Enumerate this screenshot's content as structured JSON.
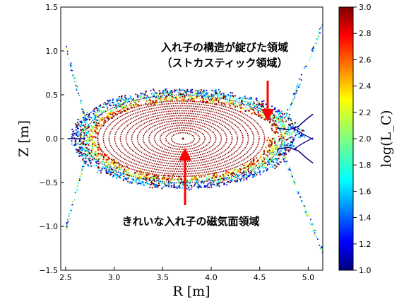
{
  "chart_data": {
    "type": "scatter",
    "title": "",
    "xlabel": "R [m]",
    "ylabel": "Z [m]",
    "xlim": [
      2.45,
      5.15
    ],
    "ylim": [
      -1.5,
      1.5
    ],
    "xticks": [
      "2.5",
      "3.0",
      "3.5",
      "4.0",
      "4.5",
      "5.0"
    ],
    "yticks": [
      "1.5",
      "1.0",
      "0.5",
      "0.0",
      "−0.5",
      "−1.0",
      "−1.5"
    ],
    "colorbar": {
      "label": "log(L_C)",
      "range": [
        1.0,
        3.0
      ],
      "ticks": [
        "3.0",
        "2.8",
        "2.6",
        "2.4",
        "2.2",
        "2.0",
        "1.8",
        "1.6",
        "1.4",
        "1.2",
        "1.0"
      ],
      "colormap": "jet"
    },
    "series": [
      {
        "region": "closed flux surfaces",
        "x": [
          3.71,
          3.66,
          3.62,
          3.56,
          3.5,
          3.43,
          3.37,
          3.3,
          3.24,
          3.17,
          3.11,
          3.04,
          2.98,
          2.92
        ],
        "y": [
          0.0,
          0.04,
          0.07,
          0.1,
          0.14,
          0.18,
          0.22,
          0.26,
          0.29,
          0.33,
          0.36,
          0.4,
          0.43,
          0.47
        ],
        "value": [
          3.0,
          3.0,
          3.0,
          3.0,
          3.0,
          3.0,
          3.0,
          3.0,
          3.0,
          3.0,
          3.0,
          3.0,
          3.0,
          3.0
        ]
      },
      {
        "region": "stochastic edge",
        "x": [
          2.7,
          2.75,
          2.85,
          3.0,
          3.2,
          4.3,
          4.45,
          4.55,
          4.65,
          4.75
        ],
        "y": [
          0.0,
          0.1,
          -0.15,
          0.25,
          -0.33,
          0.32,
          -0.25,
          0.15,
          -0.08,
          0.05
        ],
        "value": [
          2.2,
          2.5,
          2.3,
          2.6,
          2.4,
          2.5,
          2.2,
          2.6,
          2.3,
          2.1
        ]
      },
      {
        "region": "open field lines / divertor legs",
        "x": [
          2.55,
          2.65,
          4.8,
          4.9,
          5.0,
          5.05,
          4.9,
          5.0,
          5.05
        ],
        "y": [
          0.0,
          0.0,
          0.15,
          0.2,
          0.25,
          0.28,
          -0.2,
          -0.25,
          -0.28
        ],
        "value": [
          1.0,
          1.0,
          1.0,
          1.0,
          1.0,
          1.0,
          1.0,
          1.0,
          1.0
        ]
      }
    ],
    "annotations": [
      "入れ子の構造が綻びた領域",
      "（ストカスティック領域）",
      "きれいな入れ子の磁気面領域"
    ]
  }
}
